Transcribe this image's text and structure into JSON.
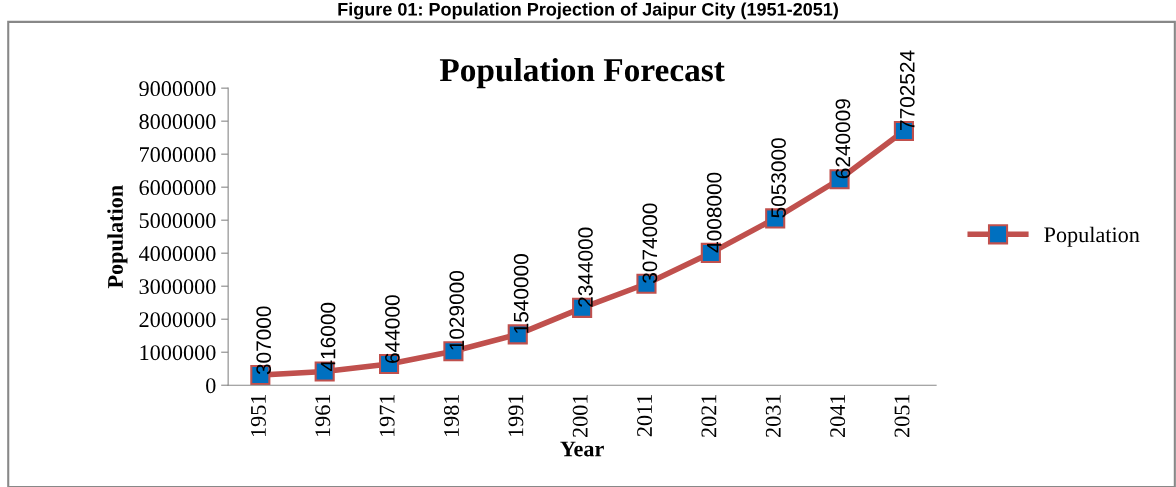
{
  "chart_data": {
    "type": "line",
    "title": "Population Forecast",
    "xlabel": "Year",
    "ylabel": "Population",
    "annotations": [
      "Figure 01: Population Projection of Jaipur City (1951-2051)"
    ],
    "categories": [
      "1951",
      "1961",
      "1971",
      "1981",
      "1991",
      "2001",
      "2011",
      "2021",
      "2031",
      "2041",
      "2051"
    ],
    "series": [
      {
        "name": "Population",
        "color": "#c0504d",
        "values": [
          307000,
          416000,
          644000,
          1029000,
          1540000,
          2344000,
          3074000,
          4008000,
          5053000,
          6240009,
          7702524
        ]
      }
    ],
    "ylim": [
      0,
      9000000
    ],
    "yticks": [
      0,
      1000000,
      2000000,
      3000000,
      4000000,
      5000000,
      6000000,
      7000000,
      8000000,
      9000000
    ],
    "data_labels": true,
    "legend": "right",
    "grid": false,
    "marker": "square",
    "line_style": "solid"
  }
}
